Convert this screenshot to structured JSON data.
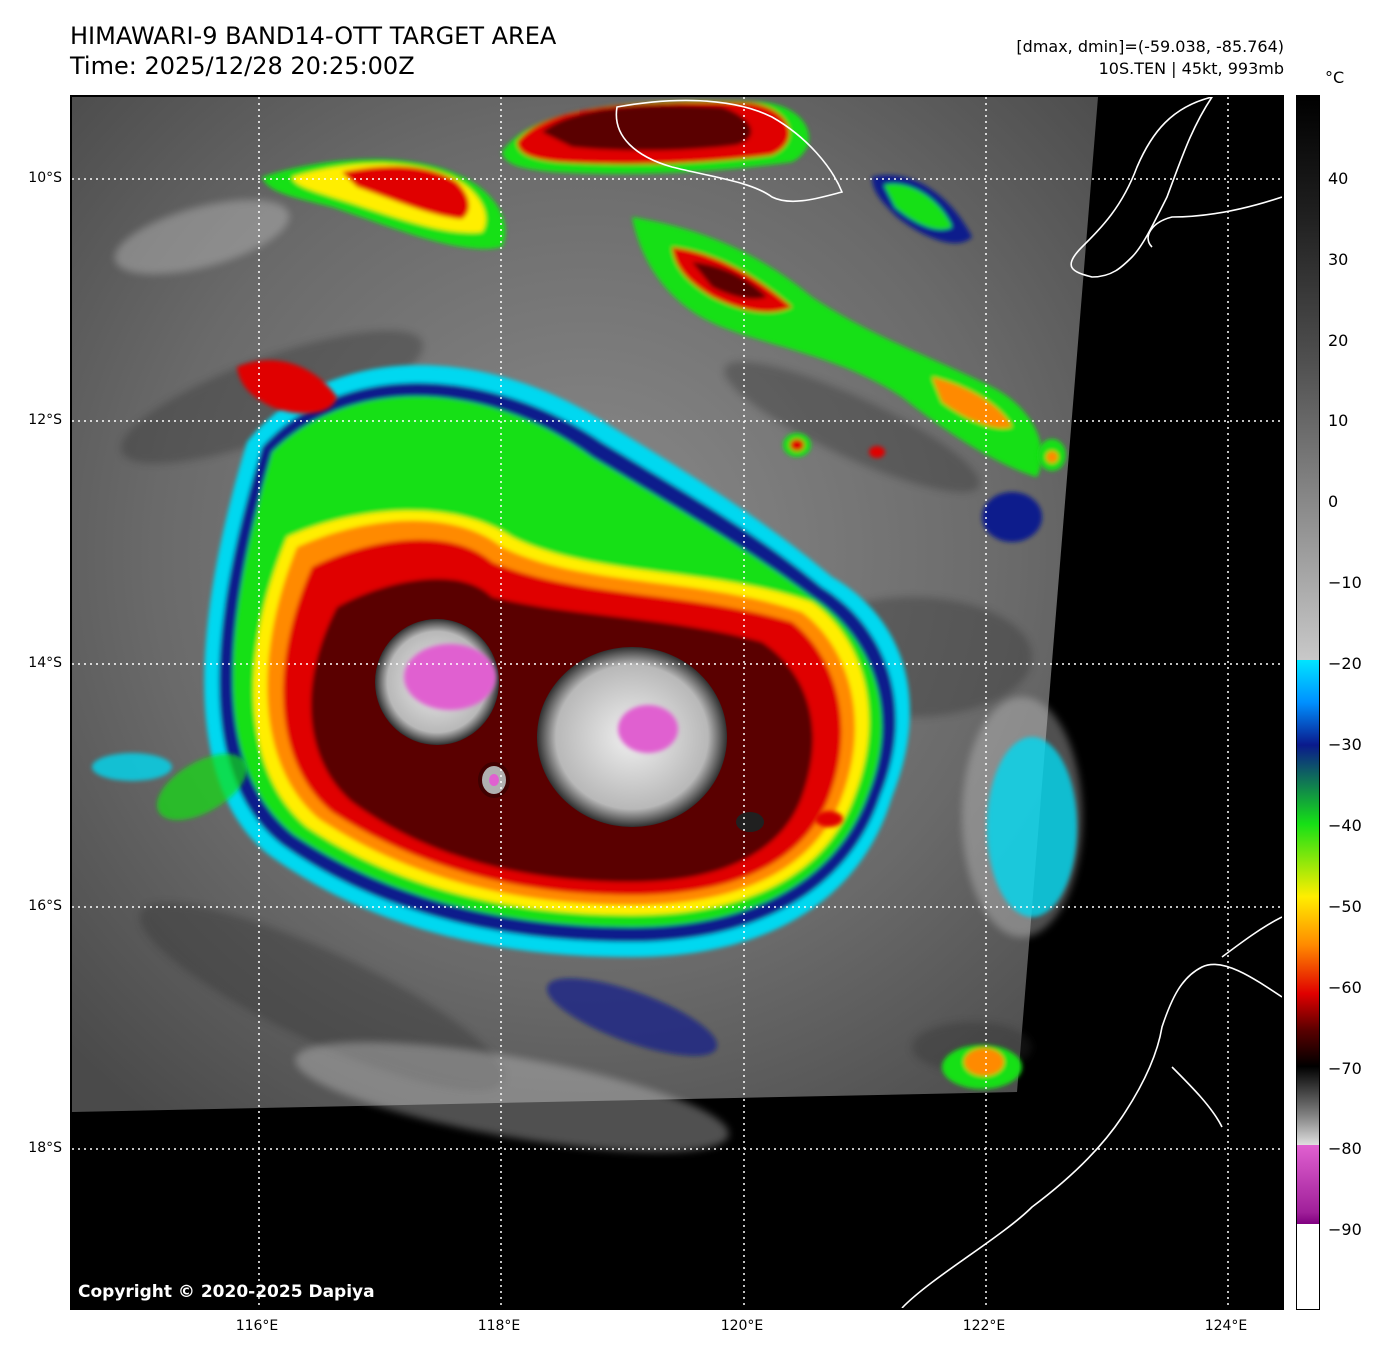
{
  "title": {
    "line1": "HIMAWARI-9 BAND14-OTT TARGET AREA",
    "line2": "Time: 2025/12/28 20:25:00Z"
  },
  "info": {
    "line1": "[dmax, dmin]=(-59.038, -85.764)",
    "line2": "10S.TEN | 45kt, 993mb"
  },
  "copyright": "Copyright © 2020-2025 Dapiya",
  "map": {
    "lat_labels": [
      "10°S",
      "12°S",
      "14°S",
      "16°S",
      "18°S"
    ],
    "lon_labels": [
      "116°E",
      "118°E",
      "120°E",
      "122°E",
      "124°E"
    ]
  },
  "colorbar": {
    "unit": "°C",
    "ticks": [
      "40",
      "30",
      "20",
      "10",
      "0",
      "−10",
      "−20",
      "−30",
      "−40",
      "−50",
      "−60",
      "−70",
      "−80",
      "−90"
    ],
    "colors": {
      "cyan": "#00e5ff",
      "blue": "#0a1a8c",
      "green": "#16e016",
      "yellow": "#ffee00",
      "orange": "#ff8a00",
      "red": "#e00000",
      "darkred": "#5a0000",
      "magenta": "#e060d0"
    }
  }
}
